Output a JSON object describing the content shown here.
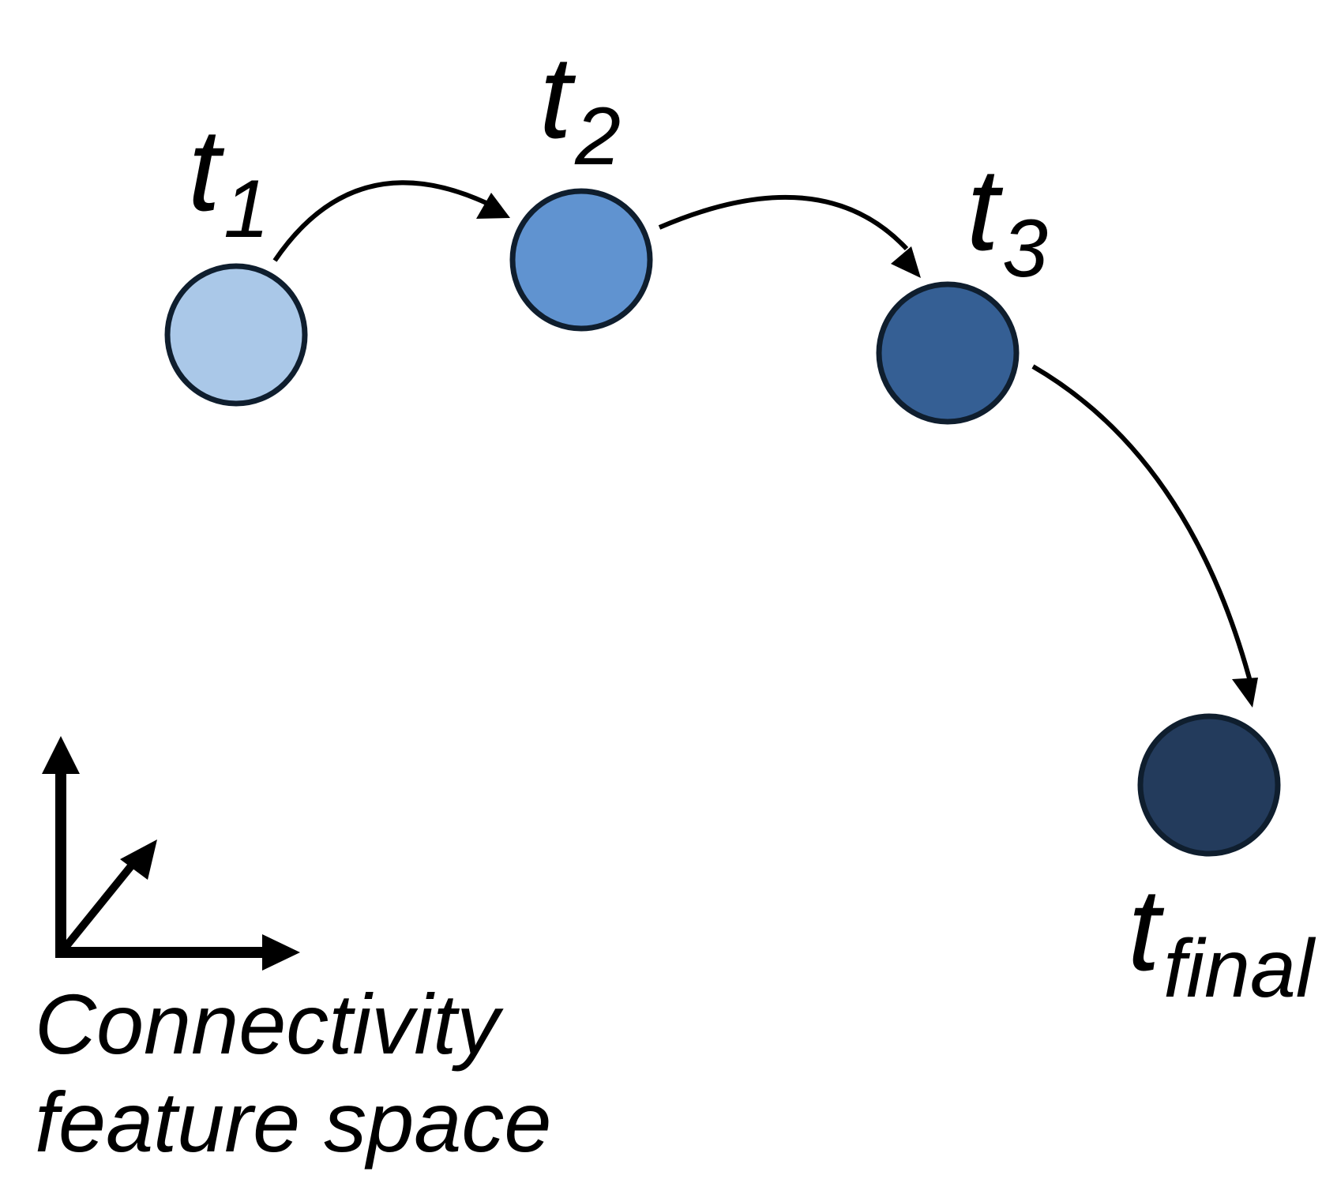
{
  "nodes": [
    {
      "id": "t1",
      "base": "t",
      "sub": "1",
      "color": "#aac8e8"
    },
    {
      "id": "t2",
      "base": "t",
      "sub": "2",
      "color": "#6093d0"
    },
    {
      "id": "t3",
      "base": "t",
      "sub": "3",
      "color": "#355f94"
    },
    {
      "id": "tfinal",
      "base": "t",
      "sub": "final",
      "color": "#233b5c"
    }
  ],
  "transitions": [
    {
      "from": "t1",
      "to": "t2"
    },
    {
      "from": "t2",
      "to": "t3"
    },
    {
      "from": "t3",
      "to": "tfinal"
    }
  ],
  "caption": {
    "line1": "Connectivity",
    "line2": "feature space"
  },
  "colors": {
    "stroke": "#000000",
    "node_outline": "#0f1e2e"
  }
}
